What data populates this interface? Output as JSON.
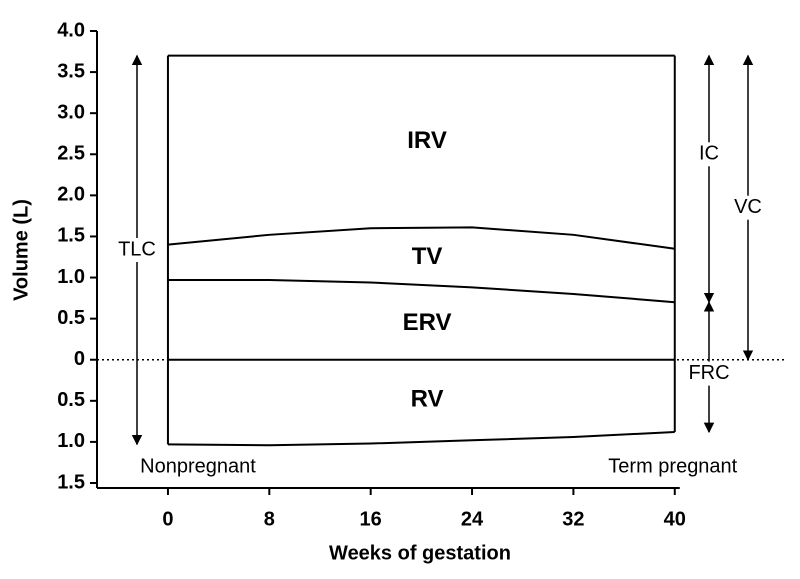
{
  "chart_data": {
    "type": "line",
    "xlabel": "Weeks of gestation",
    "ylabel": "Volume (L)",
    "x": [
      0,
      8,
      16,
      24,
      32,
      40
    ],
    "series": [
      {
        "color": "#000000",
        "values": [
          3.7,
          3.7,
          3.7,
          3.7,
          3.7,
          3.7
        ]
      },
      {
        "color": "#000000",
        "values": [
          1.4,
          1.52,
          1.6,
          1.61,
          1.52,
          1.35
        ]
      },
      {
        "color": "#000000",
        "values": [
          0.97,
          0.97,
          0.94,
          0.88,
          0.8,
          0.7
        ]
      },
      {
        "color": "#000000",
        "values": [
          0,
          0,
          0,
          0,
          0,
          0
        ]
      },
      {
        "color": "#000000",
        "values": [
          -1.03,
          -1.04,
          -1.02,
          -0.98,
          -0.94,
          -0.88
        ]
      }
    ],
    "regions": [
      "IRV",
      "TV",
      "ERV",
      "RV"
    ],
    "arrows": [
      "TLC",
      "IC",
      "FRC",
      "VC"
    ],
    "start_label": "Nonpregnant",
    "end_label": "Term pregnant",
    "xlim": [
      -5.6,
      48.7
    ],
    "xticks": [
      0,
      8,
      16,
      24,
      32,
      40
    ],
    "ylim": [
      -1.5,
      4.0
    ],
    "yticks": [
      {
        "value": -1.5,
        "label": "1.5"
      },
      {
        "value": -1.0,
        "label": "1.0"
      },
      {
        "value": -0.5,
        "label": "0.5"
      },
      0,
      {
        "value": 0.5,
        "label": "0.5"
      },
      {
        "value": 1.0,
        "label": "1.0"
      },
      {
        "value": 1.5,
        "label": "1.5"
      },
      {
        "value": 2.0,
        "label": "2.0"
      },
      {
        "value": 2.5,
        "label": "2.5"
      },
      {
        "value": 3.0,
        "label": "3.0"
      },
      {
        "value": 3.5,
        "label": "3.5"
      },
      {
        "value": 4.0,
        "label": "4.0"
      }
    ]
  }
}
